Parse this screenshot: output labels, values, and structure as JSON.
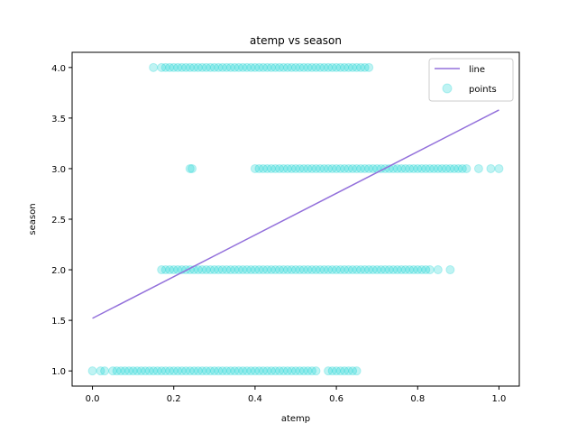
{
  "chart_data": {
    "type": "scatter",
    "title": "atemp vs season",
    "xlabel": "atemp",
    "ylabel": "season",
    "xlim": [
      -0.05,
      1.05
    ],
    "ylim": [
      0.85,
      4.15
    ],
    "xticks": [
      "0.0",
      "0.2",
      "0.4",
      "0.6",
      "0.8",
      "1.0"
    ],
    "yticks": [
      "1.0",
      "1.5",
      "2.0",
      "2.5",
      "3.0",
      "3.5",
      "4.0"
    ],
    "grid": false,
    "legend_position": "top-right",
    "line": {
      "name": "line",
      "color": "#9370db",
      "points": [
        [
          0.0,
          1.52
        ],
        [
          1.0,
          3.58
        ]
      ]
    },
    "points": {
      "name": "points",
      "color": "#00ced1",
      "opacity": 0.25,
      "groups": [
        {
          "y": 1.0,
          "x": [
            0.0,
            0.02,
            0.03,
            0.05,
            0.06,
            0.07,
            0.08,
            0.09,
            0.1,
            0.11,
            0.12,
            0.13,
            0.14,
            0.15,
            0.16,
            0.17,
            0.18,
            0.19,
            0.2,
            0.21,
            0.22,
            0.23,
            0.24,
            0.25,
            0.26,
            0.27,
            0.28,
            0.29,
            0.3,
            0.31,
            0.32,
            0.33,
            0.34,
            0.35,
            0.36,
            0.37,
            0.38,
            0.39,
            0.4,
            0.41,
            0.42,
            0.43,
            0.44,
            0.45,
            0.46,
            0.47,
            0.48,
            0.49,
            0.5,
            0.51,
            0.52,
            0.53,
            0.54,
            0.55,
            0.58,
            0.59,
            0.6,
            0.61,
            0.62,
            0.63,
            0.64,
            0.65
          ]
        },
        {
          "y": 2.0,
          "x": [
            0.17,
            0.18,
            0.19,
            0.2,
            0.21,
            0.22,
            0.23,
            0.24,
            0.25,
            0.26,
            0.27,
            0.28,
            0.29,
            0.3,
            0.31,
            0.32,
            0.33,
            0.34,
            0.35,
            0.36,
            0.37,
            0.38,
            0.39,
            0.4,
            0.41,
            0.42,
            0.43,
            0.44,
            0.45,
            0.46,
            0.47,
            0.48,
            0.49,
            0.5,
            0.51,
            0.52,
            0.53,
            0.54,
            0.55,
            0.56,
            0.57,
            0.58,
            0.59,
            0.6,
            0.61,
            0.62,
            0.63,
            0.64,
            0.65,
            0.66,
            0.67,
            0.68,
            0.69,
            0.7,
            0.71,
            0.72,
            0.73,
            0.74,
            0.75,
            0.76,
            0.77,
            0.78,
            0.79,
            0.8,
            0.81,
            0.82,
            0.83,
            0.85,
            0.88
          ]
        },
        {
          "y": 3.0,
          "x": [
            0.24,
            0.245,
            0.4,
            0.41,
            0.42,
            0.43,
            0.44,
            0.45,
            0.46,
            0.47,
            0.48,
            0.49,
            0.5,
            0.51,
            0.52,
            0.53,
            0.54,
            0.55,
            0.56,
            0.57,
            0.58,
            0.59,
            0.6,
            0.61,
            0.62,
            0.63,
            0.64,
            0.65,
            0.66,
            0.67,
            0.68,
            0.69,
            0.7,
            0.71,
            0.72,
            0.73,
            0.74,
            0.75,
            0.76,
            0.77,
            0.78,
            0.79,
            0.8,
            0.81,
            0.82,
            0.83,
            0.84,
            0.85,
            0.86,
            0.87,
            0.88,
            0.89,
            0.9,
            0.91,
            0.92,
            0.95,
            0.98,
            1.0
          ]
        },
        {
          "y": 4.0,
          "x": [
            0.15,
            0.17,
            0.18,
            0.19,
            0.2,
            0.21,
            0.22,
            0.23,
            0.24,
            0.25,
            0.26,
            0.27,
            0.28,
            0.29,
            0.3,
            0.31,
            0.32,
            0.33,
            0.34,
            0.35,
            0.36,
            0.37,
            0.38,
            0.39,
            0.4,
            0.41,
            0.42,
            0.43,
            0.44,
            0.45,
            0.46,
            0.47,
            0.48,
            0.49,
            0.5,
            0.51,
            0.52,
            0.53,
            0.54,
            0.55,
            0.56,
            0.57,
            0.58,
            0.59,
            0.6,
            0.61,
            0.62,
            0.63,
            0.64,
            0.65,
            0.66,
            0.67,
            0.68
          ]
        }
      ]
    }
  }
}
